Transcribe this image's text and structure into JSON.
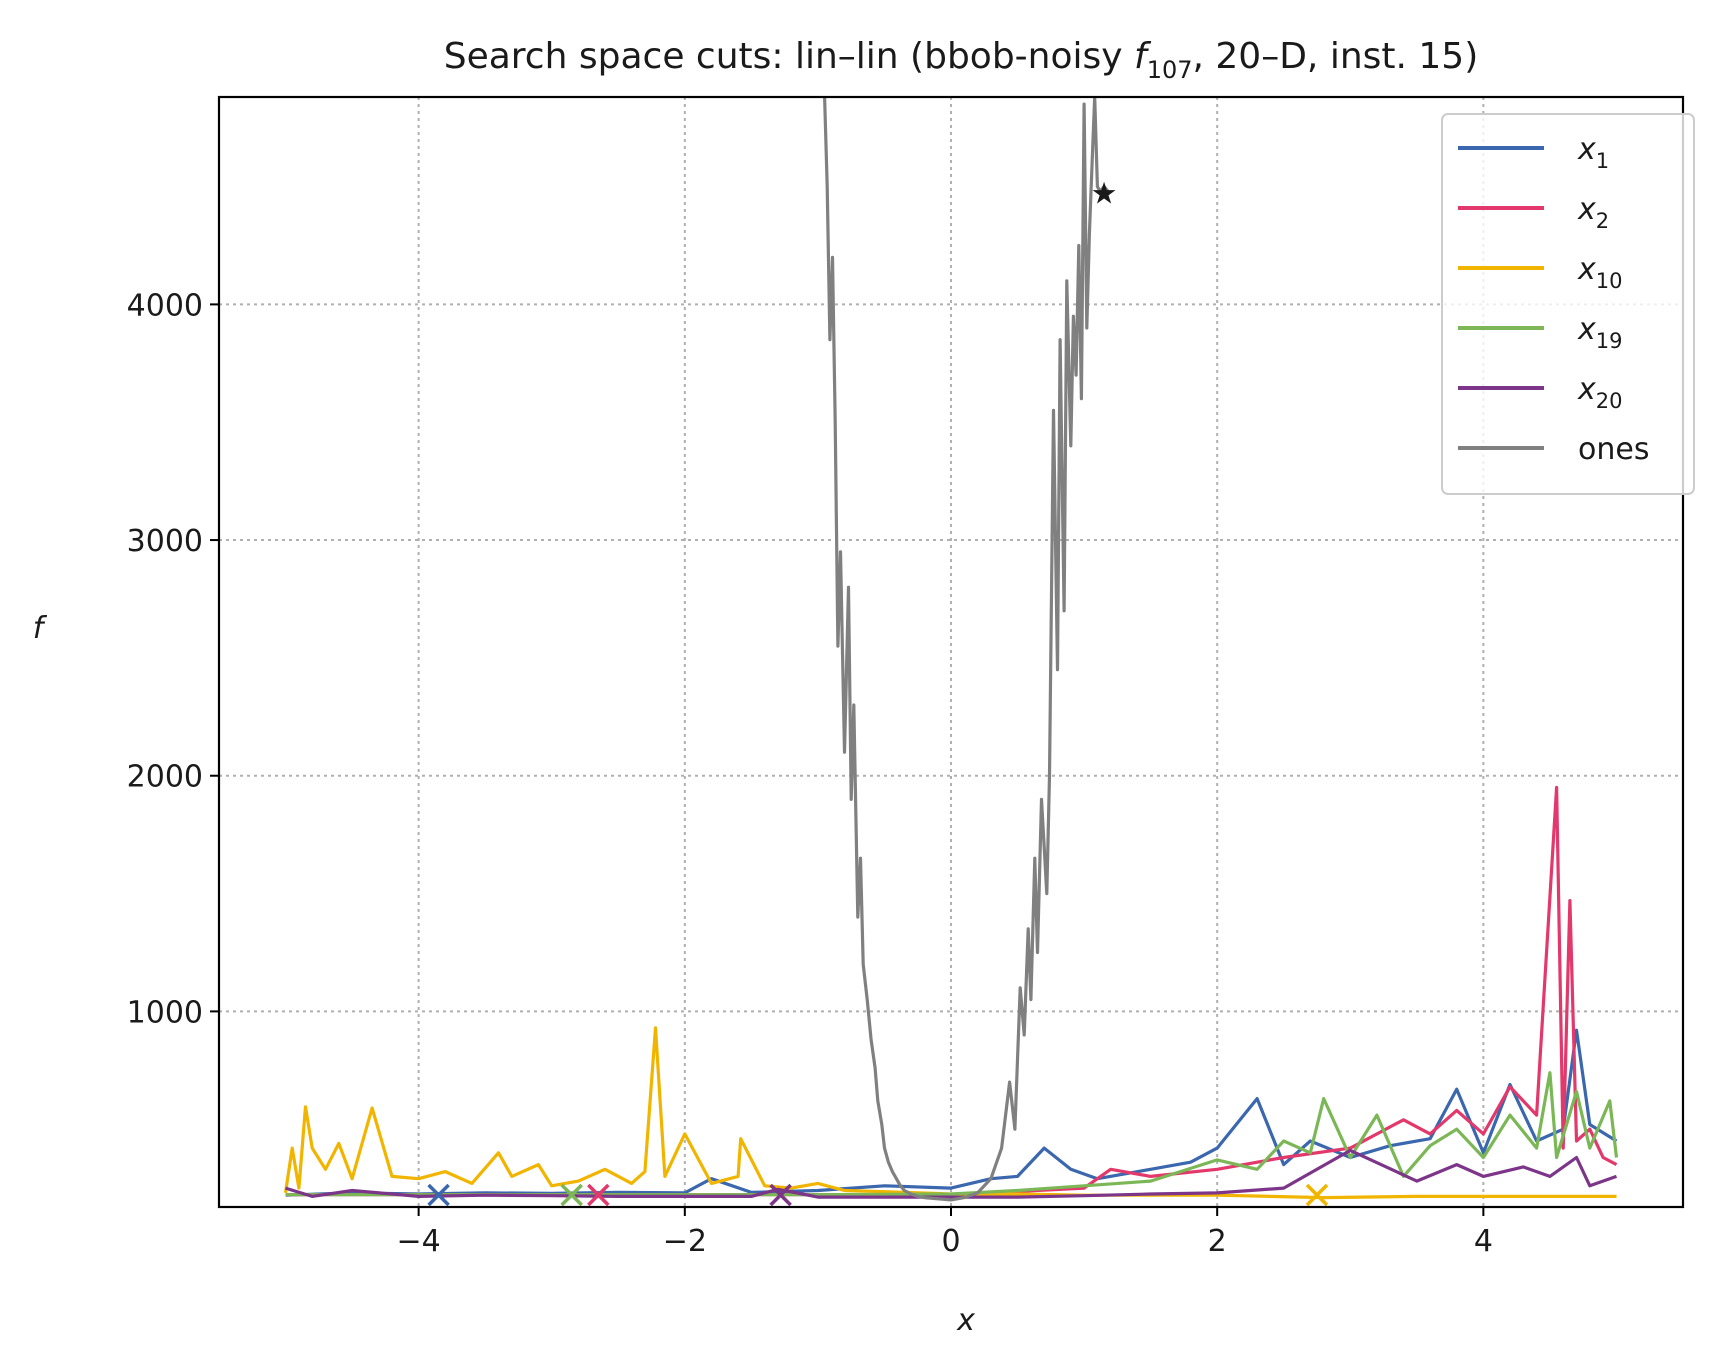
{
  "chart_data": {
    "type": "line",
    "title": {
      "prefix": "Search space cuts: lin–lin (bbob-noisy ",
      "func_symbol": "f",
      "func_sub": "107",
      "suffix": ", 20–D, inst. 15)"
    },
    "xlabel": "x",
    "ylabel": "f",
    "xlim": [
      -5.5,
      5.5
    ],
    "ylim": [
      170,
      4880
    ],
    "xticks": [
      -4,
      -2,
      0,
      2,
      4
    ],
    "xtick_labels": [
      "−4",
      "−2",
      "0",
      "2",
      "4"
    ],
    "yticks": [
      1000,
      2000,
      3000,
      4000
    ],
    "ytick_labels": [
      "1000",
      "2000",
      "3000",
      "4000"
    ],
    "grid": true,
    "legend_position": "top-right",
    "series": [
      {
        "key": "x1",
        "var": "x",
        "sub": "1",
        "color": "#3a67ad",
        "x": [
          -5.0,
          -4.5,
          -4.0,
          -3.5,
          -3.0,
          -2.5,
          -2.0,
          -1.8,
          -1.5,
          -1.0,
          -0.5,
          0.0,
          0.3,
          0.5,
          0.7,
          0.9,
          1.1,
          1.5,
          1.8,
          2.0,
          2.3,
          2.5,
          2.7,
          3.0,
          3.3,
          3.6,
          3.8,
          4.0,
          4.2,
          4.4,
          4.6,
          4.7,
          4.8,
          5.0
        ],
        "y": [
          220,
          230,
          225,
          230,
          228,
          232,
          230,
          290,
          232,
          240,
          260,
          250,
          290,
          300,
          420,
          330,
          290,
          330,
          360,
          420,
          630,
          350,
          450,
          380,
          430,
          460,
          670,
          400,
          690,
          450,
          500,
          920,
          520,
          450
        ],
        "marker_x": -3.85
      },
      {
        "key": "x2",
        "var": "x",
        "sub": "2",
        "color": "#e3386b",
        "x": [
          -5.0,
          -4.0,
          -3.0,
          -2.7,
          -2.0,
          -1.0,
          0.0,
          1.0,
          1.2,
          1.5,
          2.0,
          2.5,
          3.0,
          3.4,
          3.6,
          3.8,
          4.0,
          4.2,
          4.4,
          4.55,
          4.6,
          4.65,
          4.7,
          4.8,
          4.9,
          5.0
        ],
        "y": [
          222,
          222,
          222,
          222,
          222,
          222,
          222,
          250,
          330,
          300,
          330,
          380,
          420,
          540,
          480,
          580,
          480,
          680,
          560,
          1950,
          420,
          1470,
          450,
          500,
          380,
          350
        ],
        "marker_x": -2.65
      },
      {
        "key": "x10",
        "var": "x",
        "sub": "10",
        "color": "#f1b500",
        "x": [
          -5.0,
          -4.95,
          -4.9,
          -4.85,
          -4.8,
          -4.7,
          -4.6,
          -4.5,
          -4.35,
          -4.2,
          -4.0,
          -3.8,
          -3.6,
          -3.4,
          -3.3,
          -3.1,
          -3.0,
          -2.8,
          -2.6,
          -2.4,
          -2.3,
          -2.22,
          -2.15,
          -2.0,
          -1.8,
          -1.6,
          -1.58,
          -1.4,
          -1.2,
          -1.0,
          -0.8,
          -0.5,
          0.0,
          0.5,
          1.0,
          2.0,
          2.8,
          3.5,
          4.0,
          4.5,
          5.0
        ],
        "y": [
          230,
          420,
          250,
          595,
          420,
          330,
          440,
          290,
          590,
          300,
          290,
          320,
          270,
          400,
          300,
          350,
          260,
          280,
          330,
          270,
          320,
          930,
          300,
          480,
          270,
          300,
          460,
          260,
          250,
          270,
          240,
          235,
          225,
          225,
          220,
          220,
          210,
          215,
          215,
          215,
          215
        ],
        "marker_x": 2.75
      },
      {
        "key": "x19",
        "var": "x",
        "sub": "19",
        "color": "#7bb756",
        "x": [
          -5.0,
          -4.0,
          -3.0,
          -2.85,
          -2.0,
          -1.0,
          0.0,
          0.5,
          1.0,
          1.5,
          2.0,
          2.3,
          2.5,
          2.7,
          2.8,
          3.0,
          3.2,
          3.4,
          3.6,
          3.8,
          4.0,
          4.2,
          4.4,
          4.5,
          4.55,
          4.7,
          4.8,
          4.95,
          5.0
        ],
        "y": [
          222,
          222,
          222,
          222,
          222,
          222,
          225,
          240,
          260,
          280,
          370,
          330,
          450,
          400,
          630,
          380,
          560,
          300,
          430,
          500,
          380,
          560,
          420,
          740,
          380,
          660,
          420,
          620,
          380
        ],
        "marker_x": -2.85
      },
      {
        "key": "x20",
        "var": "x",
        "sub": "20",
        "color": "#7c3589",
        "x": [
          -5.0,
          -4.8,
          -4.5,
          -4.0,
          -3.5,
          -3.0,
          -2.5,
          -2.0,
          -1.5,
          -1.3,
          -1.0,
          -0.5,
          0.0,
          0.5,
          1.0,
          1.5,
          2.0,
          2.5,
          3.0,
          3.5,
          3.8,
          4.0,
          4.3,
          4.5,
          4.7,
          4.8,
          5.0
        ],
        "y": [
          250,
          215,
          240,
          215,
          220,
          218,
          215,
          215,
          215,
          245,
          212,
          212,
          212,
          212,
          218,
          225,
          230,
          250,
          410,
          280,
          350,
          300,
          340,
          300,
          380,
          260,
          300
        ],
        "marker_x": -1.28
      },
      {
        "key": "ones",
        "label": "ones",
        "color": "#808080",
        "x": [
          -0.95,
          -0.93,
          -0.91,
          -0.89,
          -0.87,
          -0.85,
          -0.83,
          -0.8,
          -0.77,
          -0.75,
          -0.73,
          -0.7,
          -0.68,
          -0.66,
          -0.63,
          -0.6,
          -0.57,
          -0.55,
          -0.52,
          -0.5,
          -0.47,
          -0.44,
          -0.41,
          -0.38,
          -0.35,
          -0.3,
          -0.25,
          -0.2,
          -0.1,
          0.0,
          0.1,
          0.2,
          0.3,
          0.38,
          0.44,
          0.48,
          0.52,
          0.55,
          0.58,
          0.6,
          0.63,
          0.65,
          0.68,
          0.72,
          0.74,
          0.77,
          0.8,
          0.82,
          0.85,
          0.87,
          0.9,
          0.92,
          0.94,
          0.96,
          0.98,
          1.0,
          1.02,
          1.04,
          1.06,
          1.08,
          1.1,
          1.12,
          1.15,
          1.18
        ],
        "y": [
          4880,
          4500,
          3850,
          4200,
          3500,
          2550,
          2950,
          2100,
          2800,
          1900,
          2300,
          1400,
          1650,
          1200,
          1050,
          880,
          760,
          620,
          520,
          420,
          360,
          320,
          290,
          260,
          240,
          225,
          215,
          210,
          205,
          200,
          210,
          230,
          290,
          420,
          700,
          500,
          1100,
          900,
          1350,
          1050,
          1650,
          1250,
          1900,
          1500,
          2000,
          3550,
          2450,
          3850,
          2700,
          4100,
          3400,
          3950,
          3700,
          4250,
          3600,
          4850,
          3900,
          4300,
          4600,
          4880,
          4500,
          4480,
          4500,
          4480
        ],
        "marker_x": 1.15
      }
    ]
  }
}
